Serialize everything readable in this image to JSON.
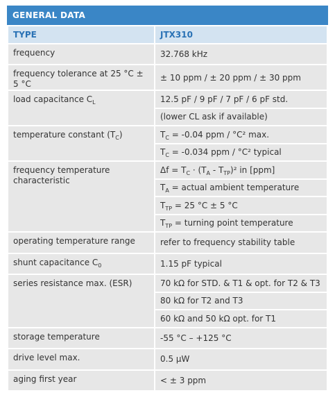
{
  "header": {
    "title": "GENERAL DATA"
  },
  "table": {
    "type_row": {
      "label": "TYPE",
      "value": "JTX310"
    },
    "rows": [
      {
        "label": [
          "frequency"
        ],
        "values": [
          [
            "32.768 kHz"
          ]
        ]
      },
      {
        "label": [
          "frequency tolerance at 25 °C ± 5 °C"
        ],
        "values": [
          [
            "± 10 ppm / ± 20 ppm / ± 30 ppm"
          ]
        ]
      },
      {
        "label": [
          "load capacitance C",
          {
            "sub": "L"
          }
        ],
        "values": [
          [
            "12.5 pF / 9 pF / 7 pF / 6 pF std."
          ],
          [
            "(lower CL ask if available)"
          ]
        ]
      },
      {
        "label": [
          "temperature constant (T",
          {
            "sub": "C"
          },
          ")"
        ],
        "values": [
          [
            "T",
            {
              "sub": "C"
            },
            " = -0.04 ppm / °C² max."
          ],
          [
            "T",
            {
              "sub": "C"
            },
            " = -0.034 ppm / °C² typical"
          ]
        ]
      },
      {
        "label": [
          "frequency temperature characteristic"
        ],
        "values": [
          [
            "Δf = T",
            {
              "sub": "C"
            },
            " · (T",
            {
              "sub": "A"
            },
            " - T",
            {
              "sub": "TP"
            },
            ")² in [ppm]"
          ],
          [
            "T",
            {
              "sub": "A"
            },
            " = actual ambient temperature"
          ],
          [
            "T",
            {
              "sub": "TP"
            },
            " = 25 °C ± 5 °C"
          ],
          [
            "T",
            {
              "sub": "TP"
            },
            " = turning point temperature"
          ]
        ]
      },
      {
        "label": [
          "operating temperature range"
        ],
        "values": [
          [
            "refer to frequency stability table"
          ]
        ]
      },
      {
        "label": [
          "shunt capacitance C",
          {
            "sub": "0"
          }
        ],
        "values": [
          [
            "1.15 pF typical"
          ]
        ]
      },
      {
        "label": [
          "series resistance max. (ESR)"
        ],
        "values": [
          [
            "70 kΩ for STD. & T1 & opt. for T2 & T3"
          ],
          [
            "80 kΩ for T2 and T3"
          ],
          [
            "60 kΩ and 50 kΩ opt. for T1"
          ]
        ]
      },
      {
        "label": [
          "storage temperature"
        ],
        "values": [
          [
            "-55 °C – +125 °C"
          ]
        ]
      },
      {
        "label": [
          "drive level max."
        ],
        "values": [
          [
            "0.5 µW"
          ]
        ]
      },
      {
        "label": [
          "aging first year"
        ],
        "values": [
          [
            "< ± 3 ppm"
          ]
        ]
      }
    ]
  }
}
